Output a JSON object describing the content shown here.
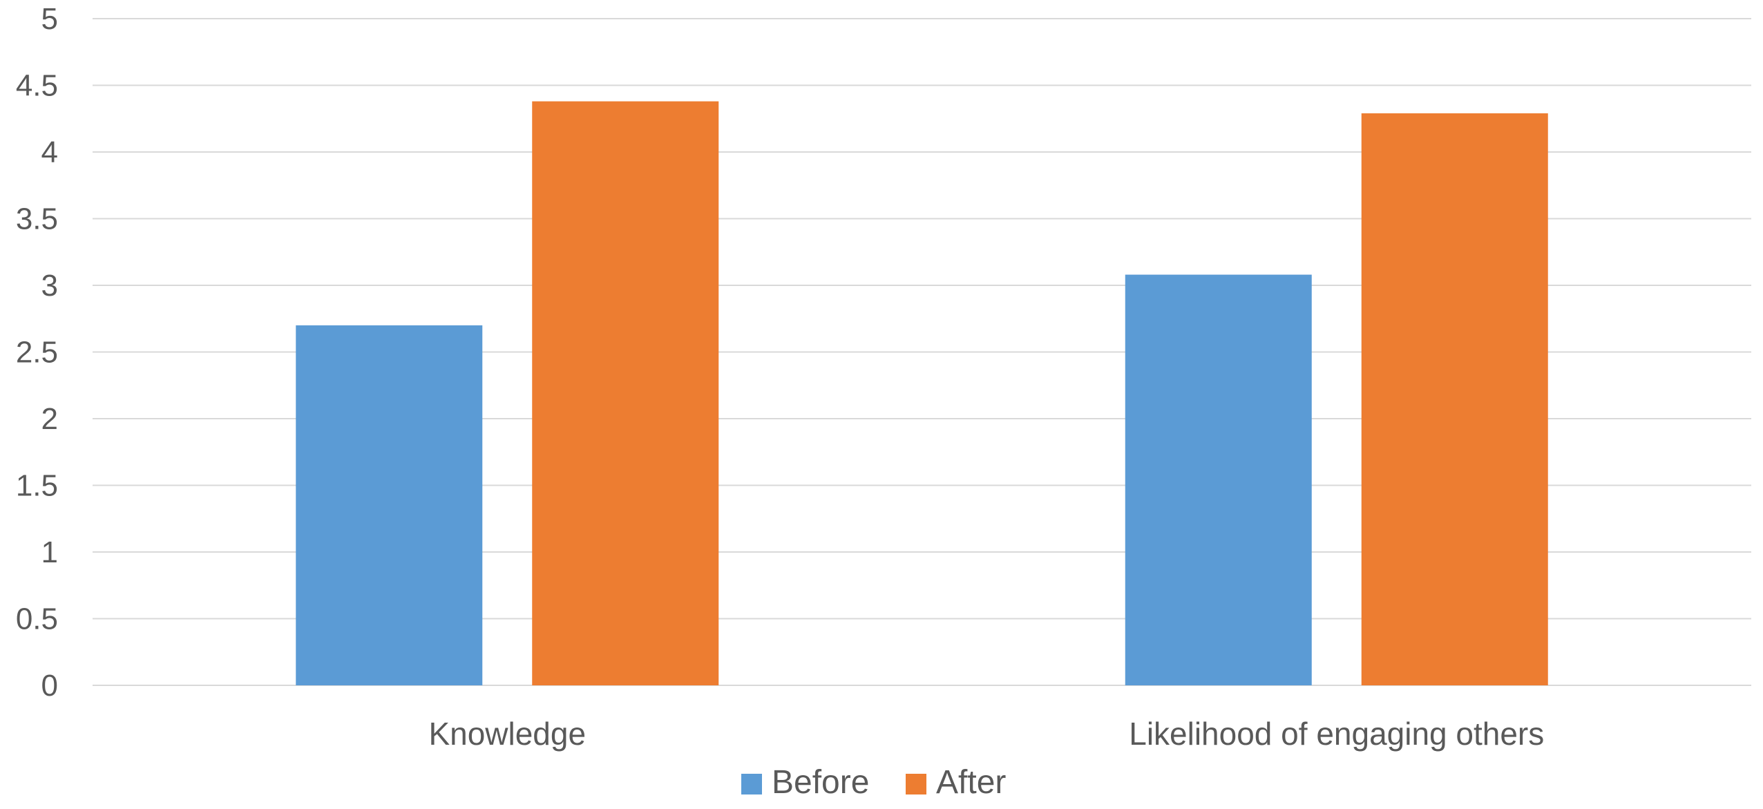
{
  "chart_data": {
    "type": "bar",
    "title": "",
    "xlabel": "",
    "ylabel": "",
    "categories": [
      "Knowledge",
      "Likelihood of engaging others"
    ],
    "series": [
      {
        "name": "Before",
        "values": [
          2.7,
          3.08
        ],
        "color": "#5b9bd5"
      },
      {
        "name": "After",
        "values": [
          4.38,
          4.29
        ],
        "color": "#ed7d31"
      }
    ],
    "ylim": [
      0,
      5
    ],
    "yticks": [
      "0",
      "0.5",
      "1",
      "1.5",
      "2",
      "2.5",
      "3",
      "3.5",
      "4",
      "4.5",
      "5"
    ],
    "grid": true,
    "legend": "bottom-center"
  }
}
